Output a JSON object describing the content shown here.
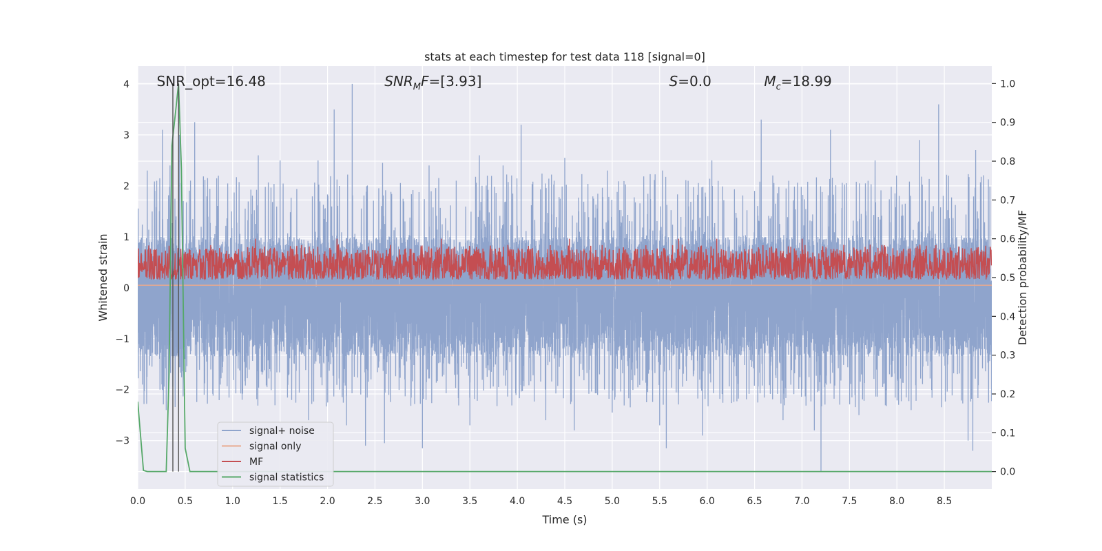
{
  "chart_data": {
    "type": "line",
    "title": "stats at each timestep for test data 118 [signal=0]",
    "xlabel": "Time (s)",
    "ylabel": "Whitened strain",
    "y2label": "Detection probability/MF",
    "xlim": [
      0.0,
      9.0
    ],
    "ylim": [
      -3.95,
      4.35
    ],
    "y2lim": [
      -0.045,
      1.045
    ],
    "xticks": [
      "0.0",
      "0.5",
      "1.0",
      "1.5",
      "2.0",
      "2.5",
      "3.0",
      "3.5",
      "4.0",
      "4.5",
      "5.0",
      "5.5",
      "6.0",
      "6.5",
      "7.0",
      "7.5",
      "8.0",
      "8.5"
    ],
    "xtick_values": [
      0.0,
      0.5,
      1.0,
      1.5,
      2.0,
      2.5,
      3.0,
      3.5,
      4.0,
      4.5,
      5.0,
      5.5,
      6.0,
      6.5,
      7.0,
      7.5,
      8.0,
      8.5
    ],
    "yticks": [
      "−3",
      "−2",
      "−1",
      "0",
      "1",
      "2",
      "3",
      "4"
    ],
    "ytick_values": [
      -3,
      -2,
      -1,
      0,
      1,
      2,
      3,
      4
    ],
    "y2ticks": [
      "0.0",
      "0.1",
      "0.2",
      "0.3",
      "0.4",
      "0.5",
      "0.6",
      "0.7",
      "0.8",
      "0.9",
      "1.0"
    ],
    "y2tick_values": [
      0.0,
      0.1,
      0.2,
      0.3,
      0.4,
      0.5,
      0.6,
      0.7,
      0.8,
      0.9,
      1.0
    ],
    "grid": true,
    "legend_position": "lower-left",
    "annotations": [
      {
        "text": "SNR_opt=16.48",
        "x": 0.2,
        "y": 4.05
      },
      {
        "text": "SNR",
        "sub": "M",
        "tail": "F=[3.93]",
        "italic": true,
        "x": 2.6,
        "y": 4.05
      },
      {
        "text": "S",
        "tail": "=0.0",
        "italic": true,
        "x": 5.6,
        "y": 4.05
      },
      {
        "text": "M",
        "sub": "c",
        "tail": "=18.99",
        "italic": true,
        "x": 6.6,
        "y": 4.05
      }
    ],
    "vlines": [
      0.37,
      0.43
    ],
    "series": [
      {
        "name": "signal+ noise",
        "color": "#8fa4cc",
        "axis": "left",
        "sample_rate": 1000,
        "base_range": [
          -1.35,
          1.0
        ],
        "spikes_high": [
          [
            0.05,
            1.6
          ],
          [
            0.1,
            2.3
          ],
          [
            0.2,
            2.1
          ],
          [
            0.26,
            3.1
          ],
          [
            0.34,
            2.4
          ],
          [
            0.44,
            3.0
          ],
          [
            0.6,
            3.25
          ],
          [
            0.85,
            2.2
          ],
          [
            1.27,
            2.6
          ],
          [
            1.5,
            2.5
          ],
          [
            1.9,
            2.5
          ],
          [
            2.07,
            3.5
          ],
          [
            2.26,
            4.0
          ],
          [
            2.58,
            2.45
          ],
          [
            3.07,
            2.4
          ],
          [
            3.6,
            2.6
          ],
          [
            3.85,
            2.4
          ],
          [
            4.04,
            3.2
          ],
          [
            4.5,
            2.55
          ],
          [
            4.95,
            2.3
          ],
          [
            5.53,
            2.3
          ],
          [
            5.8,
            2.1
          ],
          [
            6.05,
            2.5
          ],
          [
            6.57,
            3.3
          ],
          [
            6.86,
            2.1
          ],
          [
            7.3,
            3.1
          ],
          [
            7.77,
            2.5
          ],
          [
            8.24,
            2.9
          ],
          [
            8.44,
            3.6
          ],
          [
            8.83,
            2.7
          ]
        ],
        "spikes_low": [
          [
            0.05,
            -1.9
          ],
          [
            0.3,
            -2.4
          ],
          [
            0.7,
            -2.1
          ],
          [
            1.1,
            -2.2
          ],
          [
            1.8,
            -2.6
          ],
          [
            2.2,
            -2.7
          ],
          [
            2.4,
            -3.1
          ],
          [
            2.6,
            -3.05
          ],
          [
            3.0,
            -3.15
          ],
          [
            3.5,
            -2.7
          ],
          [
            4.3,
            -2.6
          ],
          [
            4.6,
            -2.8
          ],
          [
            5.0,
            -2.45
          ],
          [
            5.5,
            -2.7
          ],
          [
            5.57,
            -3.15
          ],
          [
            5.95,
            -2.9
          ],
          [
            6.8,
            -2.6
          ],
          [
            7.13,
            -2.8
          ],
          [
            7.2,
            -3.6
          ],
          [
            7.6,
            -2.5
          ],
          [
            8.15,
            -2.4
          ],
          [
            8.75,
            -3.0
          ],
          [
            8.8,
            -3.2
          ]
        ],
        "values": []
      },
      {
        "name": "signal only",
        "color": "#e8a98f",
        "axis": "left",
        "constant": 0.05,
        "values": []
      },
      {
        "name": "MF",
        "color": "#c44e52",
        "axis": "right",
        "base_range": [
          0.495,
          0.575
        ],
        "spikes": [
          [
            1.24,
            0.6
          ],
          [
            2.1,
            0.6
          ],
          [
            3.2,
            0.6
          ],
          [
            4.55,
            0.6
          ],
          [
            5.7,
            0.6
          ],
          [
            6.1,
            0.6
          ],
          [
            7.0,
            0.6
          ],
          [
            8.65,
            0.58
          ]
        ],
        "values": []
      },
      {
        "name": "signal statistics",
        "color": "#55a868",
        "axis": "right",
        "x": [
          0.0,
          0.06,
          0.1,
          0.2,
          0.3,
          0.33,
          0.36,
          0.4,
          0.43,
          0.46,
          0.5,
          0.55,
          1.0,
          9.0
        ],
        "values": [
          0.18,
          0.003,
          0.0,
          0.0,
          0.0,
          0.25,
          0.84,
          0.93,
          1.0,
          0.78,
          0.06,
          0.0,
          0.0,
          0.0
        ]
      }
    ]
  }
}
